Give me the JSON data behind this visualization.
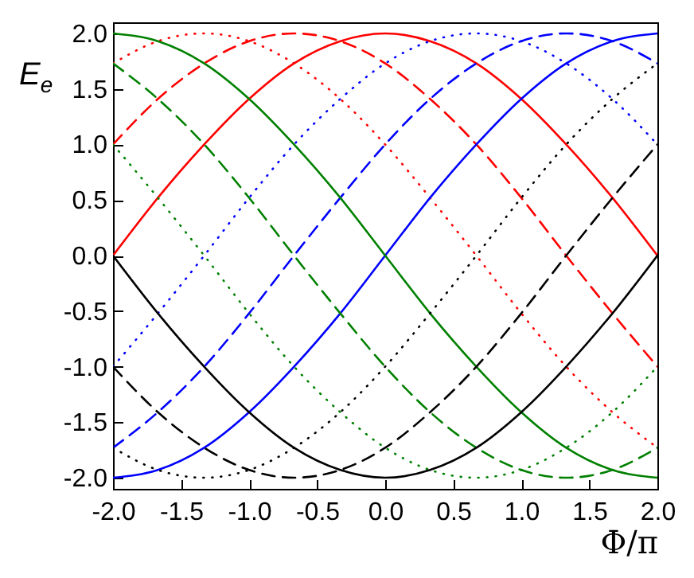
{
  "chart_data": {
    "type": "line",
    "xlabel": "Φ/π",
    "ylabel": "E$_{e}$",
    "x": [
      -2,
      -1.67,
      -1.33,
      -1,
      -0.67,
      -0.33,
      0,
      0.33,
      0.67,
      1,
      1.33,
      1.67,
      2
    ],
    "xlim": [
      -2,
      2
    ],
    "xticks": [
      {
        "value": -2,
        "label": "-2.0"
      },
      {
        "value": -1.5,
        "label": "-1.5"
      },
      {
        "value": -1,
        "label": "-1.0"
      },
      {
        "value": -0.5,
        "label": "-0.5"
      },
      {
        "value": 0,
        "label": "0.0"
      },
      {
        "value": 0.5,
        "label": "0.5"
      },
      {
        "value": 1,
        "label": "1.0"
      },
      {
        "value": 1.5,
        "label": "1.5"
      },
      {
        "value": 2,
        "label": "2.0"
      }
    ],
    "ylim": [
      -2.1,
      2.1
    ],
    "yticks": [
      {
        "value": -2,
        "label": "-2.0"
      },
      {
        "value": -1.5,
        "label": "-1.5"
      },
      {
        "value": -1,
        "label": "-1.0"
      },
      {
        "value": -0.5,
        "label": "-0.5"
      },
      {
        "value": 0,
        "label": "0.0"
      },
      {
        "value": 0.5,
        "label": "0.5"
      },
      {
        "value": 1,
        "label": "1.0"
      },
      {
        "value": 1.5,
        "label": "1.5"
      },
      {
        "value": 2,
        "label": "2.0"
      }
    ],
    "grid": false,
    "marker": "none",
    "series": [
      {
        "color": "#ff0000",
        "line_style": "solid",
        "values": [
          0,
          0.52,
          1,
          1.41,
          1.73,
          1.93,
          2,
          1.93,
          1.73,
          1.41,
          1,
          0.52,
          0
        ]
      },
      {
        "color": "#ff0000",
        "line_style": "dashed",
        "values": [
          1,
          1.41,
          1.73,
          1.93,
          2,
          1.93,
          1.73,
          1.41,
          1,
          0.52,
          0,
          -0.52,
          -1
        ]
      },
      {
        "color": "#ff0000",
        "line_style": "dotted",
        "values": [
          1.73,
          1.93,
          2,
          1.93,
          1.73,
          1.41,
          1,
          0.52,
          0,
          -0.52,
          -1,
          -1.41,
          -1.73
        ]
      },
      {
        "color": "#0000ff",
        "line_style": "solid",
        "values": [
          -2,
          -1.93,
          -1.73,
          -1.41,
          -1,
          -0.52,
          0,
          0.52,
          1,
          1.41,
          1.73,
          1.93,
          2
        ]
      },
      {
        "color": "#0000ff",
        "line_style": "dashed",
        "values": [
          -1.73,
          -1.41,
          -1,
          -0.52,
          0,
          0.52,
          1,
          1.41,
          1.73,
          1.93,
          2,
          1.93,
          1.73
        ]
      },
      {
        "color": "#0000ff",
        "line_style": "dotted",
        "values": [
          -1,
          -0.52,
          0,
          0.52,
          1,
          1.41,
          1.73,
          1.93,
          2,
          1.93,
          1.73,
          1.41,
          1
        ]
      },
      {
        "color": "#008000",
        "line_style": "solid",
        "values": [
          2,
          1.93,
          1.73,
          1.41,
          1,
          0.52,
          0,
          -0.52,
          -1,
          -1.41,
          -1.73,
          -1.93,
          -2
        ]
      },
      {
        "color": "#008000",
        "line_style": "dashed",
        "values": [
          1.73,
          1.41,
          1,
          0.52,
          0,
          -0.52,
          -1,
          -1.41,
          -1.73,
          -1.93,
          -2,
          -1.93,
          -1.73
        ]
      },
      {
        "color": "#008000",
        "line_style": "dotted",
        "values": [
          1,
          0.52,
          0,
          -0.52,
          -1,
          -1.41,
          -1.73,
          -1.93,
          -2,
          -1.93,
          -1.73,
          -1.41,
          -1
        ]
      },
      {
        "color": "#000000",
        "line_style": "solid",
        "values": [
          0,
          -0.52,
          -1,
          -1.41,
          -1.73,
          -1.93,
          -2,
          -1.93,
          -1.73,
          -1.41,
          -1,
          -0.52,
          0
        ]
      },
      {
        "color": "#000000",
        "line_style": "dashed",
        "values": [
          -1,
          -1.41,
          -1.73,
          -1.93,
          -2,
          -1.93,
          -1.73,
          -1.41,
          -1,
          -0.52,
          0,
          0.52,
          1
        ]
      },
      {
        "color": "#000000",
        "line_style": "dotted",
        "values": [
          -1.73,
          -1.93,
          -2,
          -1.93,
          -1.73,
          -1.41,
          -1,
          -0.52,
          0,
          0.52,
          1,
          1.41,
          1.73
        ]
      }
    ]
  }
}
